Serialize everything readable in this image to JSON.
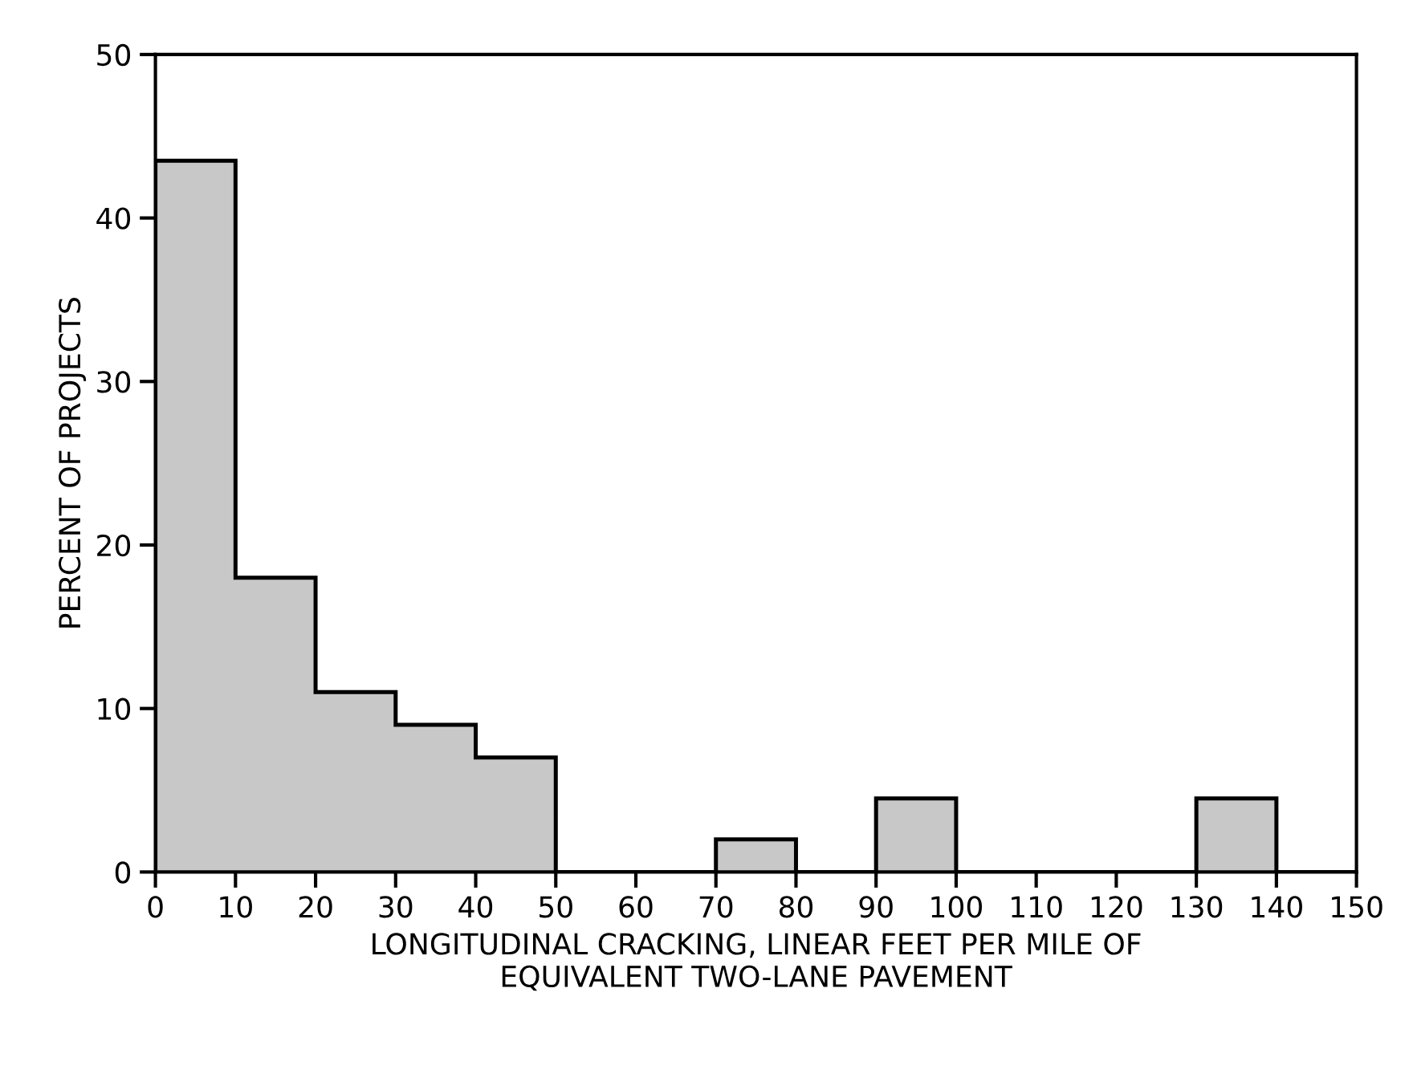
{
  "chart_data": {
    "type": "histogram",
    "xlabel": "LONGITUDINAL CRACKING, LINEAR FEET PER MILE OF\nEQUIVALENT TWO-LANE PAVEMENT",
    "ylabel": "PERCENT OF PROJECTS",
    "bins": [
      0,
      10,
      20,
      30,
      40,
      50,
      60,
      70,
      80,
      90,
      100,
      110,
      120,
      130,
      140,
      150
    ],
    "values": [
      43.5,
      18,
      11,
      9,
      7,
      0,
      0,
      2,
      0,
      4.5,
      0,
      0,
      0,
      4.5,
      0
    ],
    "color": "#c8c8c8",
    "xlim": [
      0,
      150
    ],
    "ylim": [
      0,
      50
    ],
    "xticks": [
      0,
      10,
      20,
      30,
      40,
      50,
      60,
      70,
      80,
      90,
      100,
      110,
      120,
      130,
      140,
      150
    ],
    "yticks": [
      0,
      10,
      20,
      30,
      40,
      50
    ],
    "grid": false
  }
}
